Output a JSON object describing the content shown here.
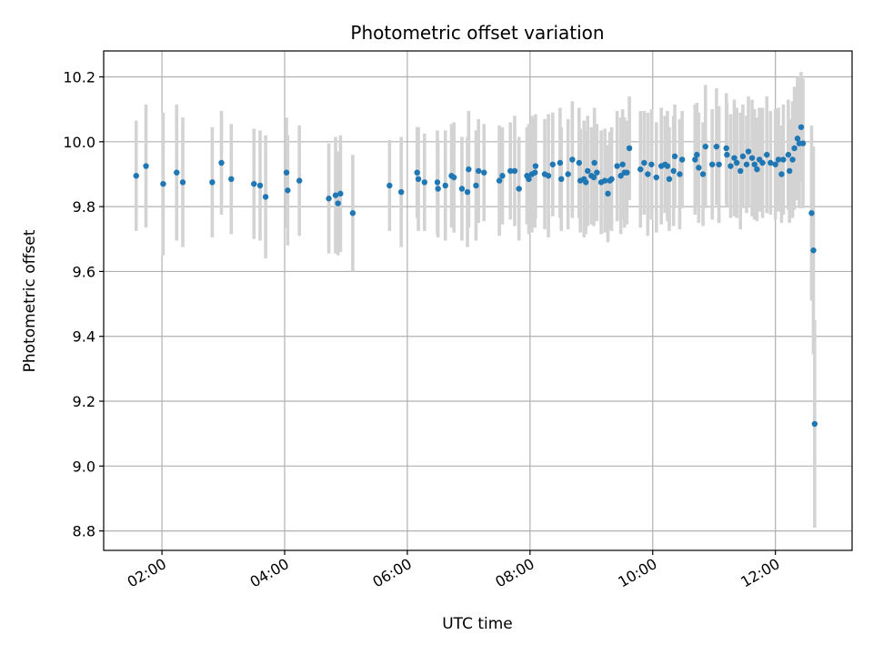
{
  "chart_data": {
    "type": "scatter",
    "title": "Photometric offset variation",
    "xlabel": "UTC time",
    "ylabel": "Photometric offset",
    "grid": true,
    "xlim_hours": [
      1.05,
      13.25
    ],
    "ylim": [
      8.74,
      10.28
    ],
    "x_ticks": [
      {
        "value": 2,
        "label": "02:00"
      },
      {
        "value": 4,
        "label": "04:00"
      },
      {
        "value": 6,
        "label": "06:00"
      },
      {
        "value": 8,
        "label": "08:00"
      },
      {
        "value": 10,
        "label": "10:00"
      },
      {
        "value": 12,
        "label": "12:00"
      }
    ],
    "y_ticks": [
      {
        "value": 8.8,
        "label": "8.8"
      },
      {
        "value": 9.0,
        "label": "9.0"
      },
      {
        "value": 9.2,
        "label": "9.2"
      },
      {
        "value": 9.4,
        "label": "9.4"
      },
      {
        "value": 9.6,
        "label": "9.6"
      },
      {
        "value": 9.8,
        "label": "9.8"
      },
      {
        "value": 10.0,
        "label": "10.0"
      },
      {
        "value": 10.2,
        "label": "10.2"
      }
    ],
    "colors": {
      "point": "#1f77b4",
      "errorbar": "#d3d3d3",
      "grid": "#b0b0b0"
    },
    "points": [
      [
        1.58,
        9.895,
        0.17
      ],
      [
        1.74,
        9.925,
        0.19
      ],
      [
        2.02,
        9.87,
        0.22
      ],
      [
        2.24,
        9.905,
        0.21
      ],
      [
        2.34,
        9.875,
        0.2
      ],
      [
        2.82,
        9.875,
        0.17
      ],
      [
        2.97,
        9.935,
        0.16
      ],
      [
        3.13,
        9.885,
        0.17
      ],
      [
        3.5,
        9.87,
        0.17
      ],
      [
        3.6,
        9.865,
        0.17
      ],
      [
        3.69,
        9.83,
        0.19
      ],
      [
        4.03,
        9.905,
        0.17
      ],
      [
        4.05,
        9.85,
        0.17
      ],
      [
        4.24,
        9.88,
        0.17
      ],
      [
        4.72,
        9.825,
        0.17
      ],
      [
        4.83,
        9.835,
        0.18
      ],
      [
        4.87,
        9.81,
        0.16
      ],
      [
        4.91,
        9.84,
        0.18
      ],
      [
        5.11,
        9.78,
        0.18
      ],
      [
        5.71,
        9.865,
        0.14
      ],
      [
        5.9,
        9.845,
        0.17
      ],
      [
        6.16,
        9.905,
        0.14
      ],
      [
        6.18,
        9.885,
        0.16
      ],
      [
        6.28,
        9.875,
        0.15
      ],
      [
        6.49,
        9.875,
        0.16
      ],
      [
        6.5,
        9.855,
        0.15
      ],
      [
        6.62,
        9.865,
        0.17
      ],
      [
        6.72,
        9.895,
        0.16
      ],
      [
        6.76,
        9.89,
        0.17
      ],
      [
        6.89,
        9.855,
        0.16
      ],
      [
        6.98,
        9.845,
        0.17
      ],
      [
        7.0,
        9.915,
        0.18
      ],
      [
        7.12,
        9.865,
        0.17
      ],
      [
        7.16,
        9.91,
        0.16
      ],
      [
        7.25,
        9.905,
        0.15
      ],
      [
        7.5,
        9.88,
        0.17
      ],
      [
        7.55,
        9.895,
        0.15
      ],
      [
        7.68,
        9.91,
        0.15
      ],
      [
        7.75,
        9.91,
        0.17
      ],
      [
        7.82,
        9.855,
        0.16
      ],
      [
        7.95,
        9.895,
        0.15
      ],
      [
        7.98,
        9.885,
        0.17
      ],
      [
        8.03,
        9.9,
        0.18
      ],
      [
        8.08,
        9.905,
        0.17
      ],
      [
        8.09,
        9.925,
        0.16
      ],
      [
        8.24,
        9.9,
        0.17
      ],
      [
        8.3,
        9.895,
        0.19
      ],
      [
        8.37,
        9.93,
        0.16
      ],
      [
        8.49,
        9.935,
        0.17
      ],
      [
        8.51,
        9.885,
        0.16
      ],
      [
        8.62,
        9.9,
        0.17
      ],
      [
        8.69,
        9.945,
        0.18
      ],
      [
        8.8,
        9.935,
        0.17
      ],
      [
        8.82,
        9.88,
        0.16
      ],
      [
        8.88,
        9.885,
        0.18
      ],
      [
        8.91,
        9.875,
        0.16
      ],
      [
        8.94,
        9.91,
        0.17
      ],
      [
        9.0,
        9.895,
        0.15
      ],
      [
        9.04,
        9.89,
        0.15
      ],
      [
        9.05,
        9.935,
        0.17
      ],
      [
        9.09,
        9.905,
        0.15
      ],
      [
        9.16,
        9.875,
        0.16
      ],
      [
        9.22,
        9.88,
        0.16
      ],
      [
        9.27,
        9.84,
        0.15
      ],
      [
        9.3,
        9.88,
        0.15
      ],
      [
        9.33,
        9.885,
        0.16
      ],
      [
        9.42,
        9.925,
        0.17
      ],
      [
        9.48,
        9.895,
        0.18
      ],
      [
        9.51,
        9.93,
        0.17
      ],
      [
        9.54,
        9.905,
        0.17
      ],
      [
        9.58,
        9.905,
        0.16
      ],
      [
        9.62,
        9.98,
        0.16
      ],
      [
        9.8,
        9.915,
        0.18
      ],
      [
        9.86,
        9.935,
        0.16
      ],
      [
        9.92,
        9.9,
        0.19
      ],
      [
        9.98,
        9.93,
        0.17
      ],
      [
        10.06,
        9.89,
        0.17
      ],
      [
        10.14,
        9.925,
        0.18
      ],
      [
        10.2,
        9.93,
        0.15
      ],
      [
        10.24,
        9.925,
        0.17
      ],
      [
        10.27,
        9.885,
        0.16
      ],
      [
        10.34,
        9.91,
        0.17
      ],
      [
        10.36,
        9.955,
        0.16
      ],
      [
        10.44,
        9.9,
        0.17
      ],
      [
        10.48,
        9.945,
        0.15
      ],
      [
        10.69,
        9.945,
        0.17
      ],
      [
        10.72,
        9.96,
        0.16
      ],
      [
        10.75,
        9.92,
        0.17
      ],
      [
        10.82,
        9.9,
        0.16
      ],
      [
        10.86,
        9.985,
        0.19
      ],
      [
        10.97,
        9.93,
        0.17
      ],
      [
        11.04,
        9.985,
        0.18
      ],
      [
        11.08,
        9.93,
        0.18
      ],
      [
        11.2,
        9.98,
        0.17
      ],
      [
        11.21,
        9.96,
        0.16
      ],
      [
        11.27,
        9.925,
        0.16
      ],
      [
        11.33,
        9.95,
        0.18
      ],
      [
        11.37,
        9.935,
        0.17
      ],
      [
        11.43,
        9.91,
        0.18
      ],
      [
        11.47,
        9.955,
        0.16
      ],
      [
        11.53,
        9.93,
        0.15
      ],
      [
        11.56,
        9.97,
        0.17
      ],
      [
        11.62,
        9.95,
        0.18
      ],
      [
        11.66,
        9.93,
        0.17
      ],
      [
        11.7,
        9.915,
        0.16
      ],
      [
        11.74,
        9.945,
        0.16
      ],
      [
        11.79,
        9.935,
        0.17
      ],
      [
        11.86,
        9.96,
        0.18
      ],
      [
        11.92,
        9.935,
        0.16
      ],
      [
        12.0,
        9.93,
        0.17
      ],
      [
        12.05,
        9.945,
        0.16
      ],
      [
        12.1,
        9.9,
        0.15
      ],
      [
        12.13,
        9.945,
        0.17
      ],
      [
        12.21,
        9.96,
        0.17
      ],
      [
        12.23,
        9.91,
        0.16
      ],
      [
        12.28,
        9.945,
        0.18
      ],
      [
        12.31,
        9.98,
        0.19
      ],
      [
        12.36,
        10.01,
        0.19
      ],
      [
        12.39,
        9.995,
        0.2
      ],
      [
        12.42,
        10.045,
        0.17
      ],
      [
        12.45,
        9.995,
        0.2
      ],
      [
        12.59,
        9.78,
        0.27
      ],
      [
        12.62,
        9.665,
        0.32
      ],
      [
        12.64,
        9.13,
        0.32
      ]
    ]
  }
}
